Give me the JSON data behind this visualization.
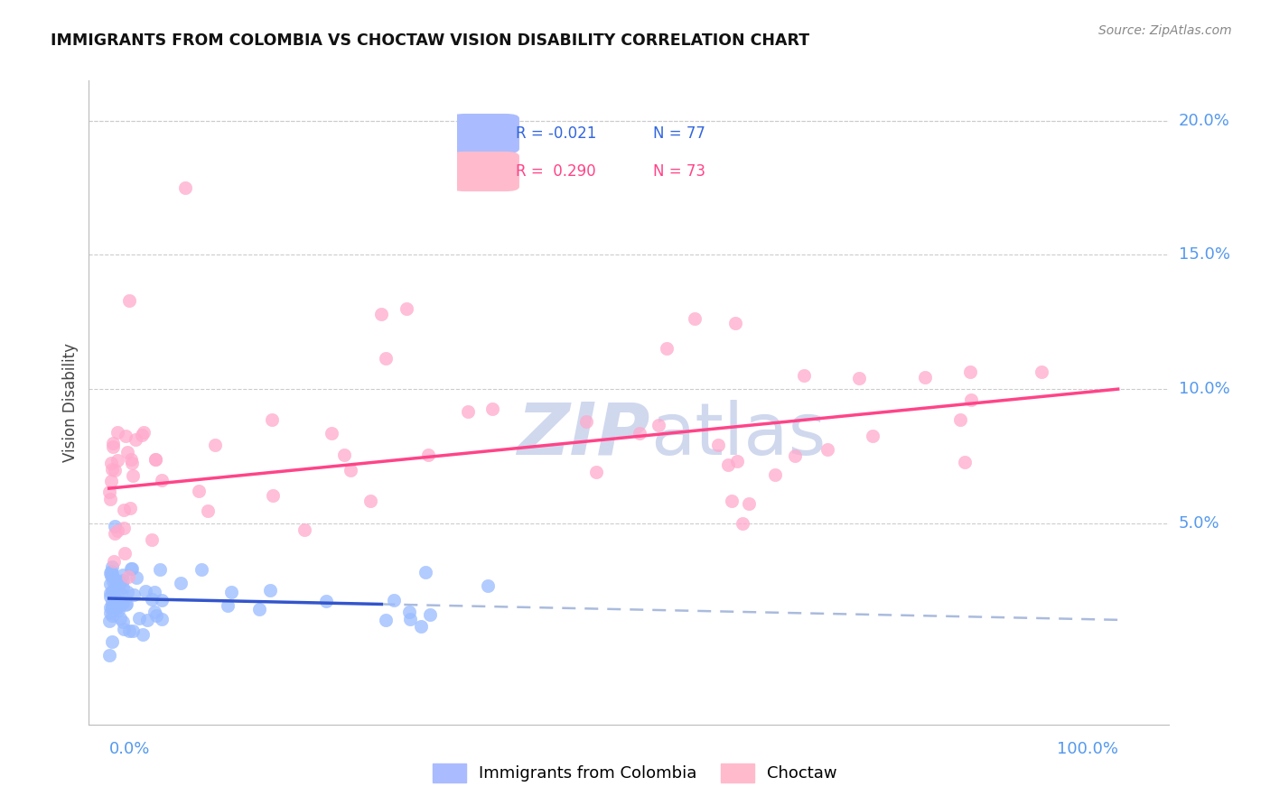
{
  "title": "IMMIGRANTS FROM COLOMBIA VS CHOCTAW VISION DISABILITY CORRELATION CHART",
  "source": "Source: ZipAtlas.com",
  "ylabel": "Vision Disability",
  "color_blue": "#99bbff",
  "color_pink": "#ffaacc",
  "line_blue": "#3355cc",
  "line_blue_dash": "#aabbdd",
  "line_pink": "#ff4488",
  "legend_blue_color": "#3366dd",
  "legend_pink_color": "#ff4488",
  "watermark_color": "#d0d8ee",
  "grid_color": "#cccccc",
  "bg_color": "#ffffff",
  "ytick_vals": [
    0.05,
    0.1,
    0.15,
    0.2
  ],
  "ytick_labels": [
    "5.0%",
    "10.0%",
    "15.0%",
    "20.0%"
  ],
  "blue_trend_x0": 0.0,
  "blue_trend_y0": 0.022,
  "blue_trend_x1": 0.25,
  "blue_trend_y1": 0.02,
  "pink_trend_x0": 0.0,
  "pink_trend_y0": 0.063,
  "pink_trend_x1": 1.0,
  "pink_trend_y1": 0.1,
  "xlim_min": -0.02,
  "xlim_max": 1.05,
  "ylim_min": -0.025,
  "ylim_max": 0.215
}
